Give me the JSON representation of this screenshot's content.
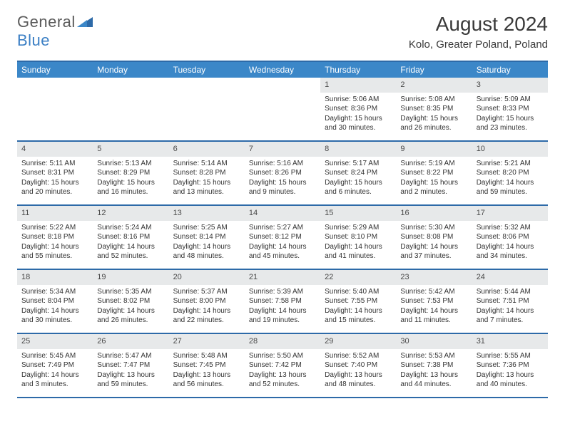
{
  "brand": {
    "name1": "General",
    "name2": "Blue"
  },
  "title": "August 2024",
  "location": "Kolo, Greater Poland, Poland",
  "dayNames": [
    "Sunday",
    "Monday",
    "Tuesday",
    "Wednesday",
    "Thursday",
    "Friday",
    "Saturday"
  ],
  "colors": {
    "headerBar": "#3b87c8",
    "topBorder": "#2d6aa8",
    "dayNumBg": "#e7e9ea",
    "text": "#333333",
    "logoGray": "#5a5a5a",
    "logoBlue": "#3b7fc4"
  },
  "weeks": [
    [
      null,
      null,
      null,
      null,
      {
        "n": "1",
        "sunrise": "Sunrise: 5:06 AM",
        "sunset": "Sunset: 8:36 PM",
        "daylight": "Daylight: 15 hours and 30 minutes."
      },
      {
        "n": "2",
        "sunrise": "Sunrise: 5:08 AM",
        "sunset": "Sunset: 8:35 PM",
        "daylight": "Daylight: 15 hours and 26 minutes."
      },
      {
        "n": "3",
        "sunrise": "Sunrise: 5:09 AM",
        "sunset": "Sunset: 8:33 PM",
        "daylight": "Daylight: 15 hours and 23 minutes."
      }
    ],
    [
      {
        "n": "4",
        "sunrise": "Sunrise: 5:11 AM",
        "sunset": "Sunset: 8:31 PM",
        "daylight": "Daylight: 15 hours and 20 minutes."
      },
      {
        "n": "5",
        "sunrise": "Sunrise: 5:13 AM",
        "sunset": "Sunset: 8:29 PM",
        "daylight": "Daylight: 15 hours and 16 minutes."
      },
      {
        "n": "6",
        "sunrise": "Sunrise: 5:14 AM",
        "sunset": "Sunset: 8:28 PM",
        "daylight": "Daylight: 15 hours and 13 minutes."
      },
      {
        "n": "7",
        "sunrise": "Sunrise: 5:16 AM",
        "sunset": "Sunset: 8:26 PM",
        "daylight": "Daylight: 15 hours and 9 minutes."
      },
      {
        "n": "8",
        "sunrise": "Sunrise: 5:17 AM",
        "sunset": "Sunset: 8:24 PM",
        "daylight": "Daylight: 15 hours and 6 minutes."
      },
      {
        "n": "9",
        "sunrise": "Sunrise: 5:19 AM",
        "sunset": "Sunset: 8:22 PM",
        "daylight": "Daylight: 15 hours and 2 minutes."
      },
      {
        "n": "10",
        "sunrise": "Sunrise: 5:21 AM",
        "sunset": "Sunset: 8:20 PM",
        "daylight": "Daylight: 14 hours and 59 minutes."
      }
    ],
    [
      {
        "n": "11",
        "sunrise": "Sunrise: 5:22 AM",
        "sunset": "Sunset: 8:18 PM",
        "daylight": "Daylight: 14 hours and 55 minutes."
      },
      {
        "n": "12",
        "sunrise": "Sunrise: 5:24 AM",
        "sunset": "Sunset: 8:16 PM",
        "daylight": "Daylight: 14 hours and 52 minutes."
      },
      {
        "n": "13",
        "sunrise": "Sunrise: 5:25 AM",
        "sunset": "Sunset: 8:14 PM",
        "daylight": "Daylight: 14 hours and 48 minutes."
      },
      {
        "n": "14",
        "sunrise": "Sunrise: 5:27 AM",
        "sunset": "Sunset: 8:12 PM",
        "daylight": "Daylight: 14 hours and 45 minutes."
      },
      {
        "n": "15",
        "sunrise": "Sunrise: 5:29 AM",
        "sunset": "Sunset: 8:10 PM",
        "daylight": "Daylight: 14 hours and 41 minutes."
      },
      {
        "n": "16",
        "sunrise": "Sunrise: 5:30 AM",
        "sunset": "Sunset: 8:08 PM",
        "daylight": "Daylight: 14 hours and 37 minutes."
      },
      {
        "n": "17",
        "sunrise": "Sunrise: 5:32 AM",
        "sunset": "Sunset: 8:06 PM",
        "daylight": "Daylight: 14 hours and 34 minutes."
      }
    ],
    [
      {
        "n": "18",
        "sunrise": "Sunrise: 5:34 AM",
        "sunset": "Sunset: 8:04 PM",
        "daylight": "Daylight: 14 hours and 30 minutes."
      },
      {
        "n": "19",
        "sunrise": "Sunrise: 5:35 AM",
        "sunset": "Sunset: 8:02 PM",
        "daylight": "Daylight: 14 hours and 26 minutes."
      },
      {
        "n": "20",
        "sunrise": "Sunrise: 5:37 AM",
        "sunset": "Sunset: 8:00 PM",
        "daylight": "Daylight: 14 hours and 22 minutes."
      },
      {
        "n": "21",
        "sunrise": "Sunrise: 5:39 AM",
        "sunset": "Sunset: 7:58 PM",
        "daylight": "Daylight: 14 hours and 19 minutes."
      },
      {
        "n": "22",
        "sunrise": "Sunrise: 5:40 AM",
        "sunset": "Sunset: 7:55 PM",
        "daylight": "Daylight: 14 hours and 15 minutes."
      },
      {
        "n": "23",
        "sunrise": "Sunrise: 5:42 AM",
        "sunset": "Sunset: 7:53 PM",
        "daylight": "Daylight: 14 hours and 11 minutes."
      },
      {
        "n": "24",
        "sunrise": "Sunrise: 5:44 AM",
        "sunset": "Sunset: 7:51 PM",
        "daylight": "Daylight: 14 hours and 7 minutes."
      }
    ],
    [
      {
        "n": "25",
        "sunrise": "Sunrise: 5:45 AM",
        "sunset": "Sunset: 7:49 PM",
        "daylight": "Daylight: 14 hours and 3 minutes."
      },
      {
        "n": "26",
        "sunrise": "Sunrise: 5:47 AM",
        "sunset": "Sunset: 7:47 PM",
        "daylight": "Daylight: 13 hours and 59 minutes."
      },
      {
        "n": "27",
        "sunrise": "Sunrise: 5:48 AM",
        "sunset": "Sunset: 7:45 PM",
        "daylight": "Daylight: 13 hours and 56 minutes."
      },
      {
        "n": "28",
        "sunrise": "Sunrise: 5:50 AM",
        "sunset": "Sunset: 7:42 PM",
        "daylight": "Daylight: 13 hours and 52 minutes."
      },
      {
        "n": "29",
        "sunrise": "Sunrise: 5:52 AM",
        "sunset": "Sunset: 7:40 PM",
        "daylight": "Daylight: 13 hours and 48 minutes."
      },
      {
        "n": "30",
        "sunrise": "Sunrise: 5:53 AM",
        "sunset": "Sunset: 7:38 PM",
        "daylight": "Daylight: 13 hours and 44 minutes."
      },
      {
        "n": "31",
        "sunrise": "Sunrise: 5:55 AM",
        "sunset": "Sunset: 7:36 PM",
        "daylight": "Daylight: 13 hours and 40 minutes."
      }
    ]
  ]
}
